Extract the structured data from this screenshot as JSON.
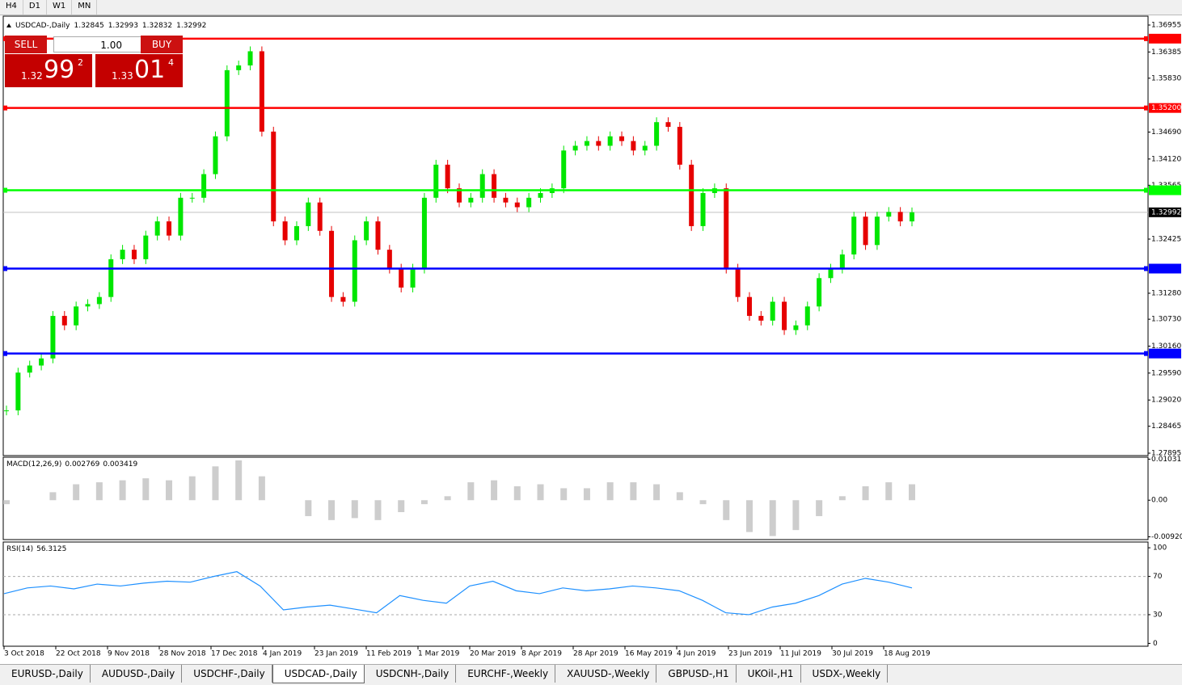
{
  "ui": {
    "timeframes": [
      "H4",
      "D1",
      "W1",
      "MN"
    ],
    "tabs": [
      "EURUSD-,Daily",
      "AUDUSD-,Daily",
      "USDCHF-,Daily",
      "USDCAD-,Daily",
      "USDCNH-,Daily",
      "EURCHF-,Weekly",
      "XAUUSD-,Weekly",
      "GBPUSD-,H1",
      "UKOil-,H1",
      "USDX-,Weekly"
    ],
    "active_tab": "USDCAD-,Daily",
    "trade": {
      "sell": "SELL",
      "buy": "BUY",
      "lot": "1.00",
      "sell_price": [
        "1.32",
        "99",
        "2"
      ],
      "buy_price": [
        "1.33",
        "01",
        "4"
      ]
    }
  },
  "chart_data": {
    "type": "candlestick",
    "title": "USDCAD-,Daily",
    "ohlc": [
      1.32845,
      1.32993,
      1.32832,
      1.32992
    ],
    "x": [
      "3 Oct 2018",
      "22 Oct 2018",
      "9 Nov 2018",
      "28 Nov 2018",
      "17 Dec 2018",
      "4 Jan 2019",
      "23 Jan 2019",
      "11 Feb 2019",
      "1 Mar 2019",
      "20 Mar 2019",
      "8 Apr 2019",
      "28 Apr 2019",
      "16 May 2019",
      "4 Jun 2019",
      "23 Jun 2019",
      "11 Jul 2019",
      "30 Jul 2019",
      "18 Aug 2019"
    ],
    "closes": [
      1.288,
      1.296,
      1.2975,
      1.299,
      1.308,
      1.306,
      1.31,
      1.3105,
      1.312,
      1.32,
      1.322,
      1.32,
      1.325,
      1.328,
      1.325,
      1.333,
      1.333,
      1.338,
      1.346,
      1.36,
      1.361,
      1.364,
      1.347,
      1.328,
      1.324,
      1.327,
      1.332,
      1.326,
      1.312,
      1.311,
      1.324,
      1.328,
      1.322,
      1.318,
      1.314,
      1.318,
      1.333,
      1.34,
      1.335,
      1.332,
      1.333,
      1.338,
      1.333,
      1.332,
      1.331,
      1.333,
      1.334,
      1.335,
      1.343,
      1.344,
      1.345,
      1.344,
      1.346,
      1.345,
      1.343,
      1.344,
      1.349,
      1.348,
      1.34,
      1.327,
      1.334,
      1.335,
      1.318,
      1.312,
      1.308,
      1.307,
      1.311,
      1.305,
      1.306,
      1.31,
      1.316,
      1.318,
      1.321,
      1.329,
      1.323,
      1.329,
      1.33,
      1.328,
      1.32992
    ],
    "up_color": "#00e600",
    "down_color": "#e60000",
    "ylim": [
      1.27844,
      1.37143
    ],
    "yticks": [
      1.36955,
      1.36385,
      {
        "value": 1.3583,
        "label": "1.35830"
      },
      {
        "value": 1.3469,
        "label": "1.34690"
      },
      {
        "value": 1.3412,
        "label": "1.34120"
      },
      1.33565,
      1.32425,
      {
        "value": 1.3128,
        "label": "1.31280"
      },
      {
        "value": 1.3073,
        "label": "1.30730"
      },
      {
        "value": 1.3016,
        "label": "1.30160"
      },
      {
        "value": 1.2959,
        "label": "1.29590"
      },
      {
        "value": 1.2902,
        "label": "1.29020"
      },
      1.28465,
      1.27895
    ],
    "levels": [
      {
        "value": 1.36667,
        "color": "#ff0000"
      },
      {
        "value": 1.352,
        "label": "1.35200",
        "color": "#ff0000"
      },
      {
        "value": 1.33459,
        "color": "#00ff00"
      },
      {
        "value": 1.31801,
        "color": "#0000ff"
      },
      {
        "value": 1.30004,
        "color": "#0000ff"
      }
    ],
    "current": 1.32992,
    "macd": {
      "title": "MACD(12,26,9)",
      "main": 0.002769,
      "signal": 0.003419,
      "color": "#c0c0c0",
      "values": [
        -0.001,
        0,
        0.002,
        0.004,
        0.0045,
        0.005,
        0.0055,
        0.005,
        0.006,
        0.0085,
        0.01,
        0.006,
        0,
        -0.004,
        -0.005,
        -0.0045,
        -0.005,
        -0.003,
        -0.001,
        0.001,
        0.0045,
        0.005,
        0.0035,
        0.004,
        0.003,
        0.003,
        0.0045,
        0.0045,
        0.004,
        0.002,
        -0.001,
        -0.005,
        -0.008,
        -0.009,
        -0.0075,
        -0.004,
        0.001,
        0.0035,
        0.0045,
        0.004
      ],
      "ylim": [
        -0.0099,
        0.0108
      ],
      "yticks": [
        0.010311,
        {
          "value": 0,
          "label": "0.00"
        },
        -0.009203
      ]
    },
    "rsi": {
      "title": "RSI(14)",
      "last": 56.3125,
      "color": "#1e90ff",
      "values": [
        52,
        58,
        60,
        57,
        62,
        60,
        63,
        65,
        64,
        70,
        75,
        60,
        35,
        38,
        40,
        36,
        32,
        50,
        45,
        42,
        60,
        65,
        55,
        52,
        58,
        55,
        57,
        60,
        58,
        55,
        45,
        32,
        30,
        38,
        42,
        50,
        62,
        68,
        64,
        58
      ],
      "ylim": [
        -3,
        106
      ],
      "yticks": [
        100,
        70,
        30,
        0
      ],
      "levels": [
        70,
        30
      ]
    }
  }
}
